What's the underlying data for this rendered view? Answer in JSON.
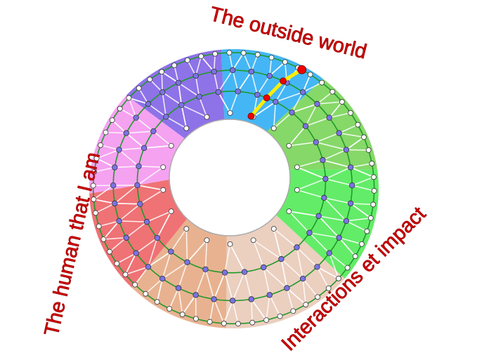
{
  "labels": {
    "top": "The outside world",
    "left": "The human that I am",
    "right": "Interactions et impact"
  },
  "sectors": [
    {
      "name": "blue",
      "color": "#45b6f5",
      "from": -95,
      "to": -52
    },
    {
      "name": "light-green",
      "color": "#86d868",
      "from": -52,
      "to": -8
    },
    {
      "name": "bright-green",
      "color": "#63ec68",
      "from": -8,
      "to": 40
    },
    {
      "name": "light-beige",
      "color": "#ebcfbf",
      "from": 40,
      "to": 93
    },
    {
      "name": "tan",
      "color": "#e8b290",
      "from": 93,
      "to": 135
    },
    {
      "name": "red",
      "color": "#ef7275",
      "from": 135,
      "to": 178
    },
    {
      "name": "pink",
      "color": "#f5a2f1",
      "from": 178,
      "to": 222
    },
    {
      "name": "purple",
      "color": "#8e72e8",
      "from": 222,
      "to": 265
    }
  ],
  "colors": {
    "ring_line": "#1f9a2a",
    "mesh_line": "#ffffff",
    "outer_node": "#ffffff",
    "mid_node": "#7b72e6",
    "path": "#ffee00",
    "path_node": "#ee0000",
    "text": "#d40000"
  }
}
